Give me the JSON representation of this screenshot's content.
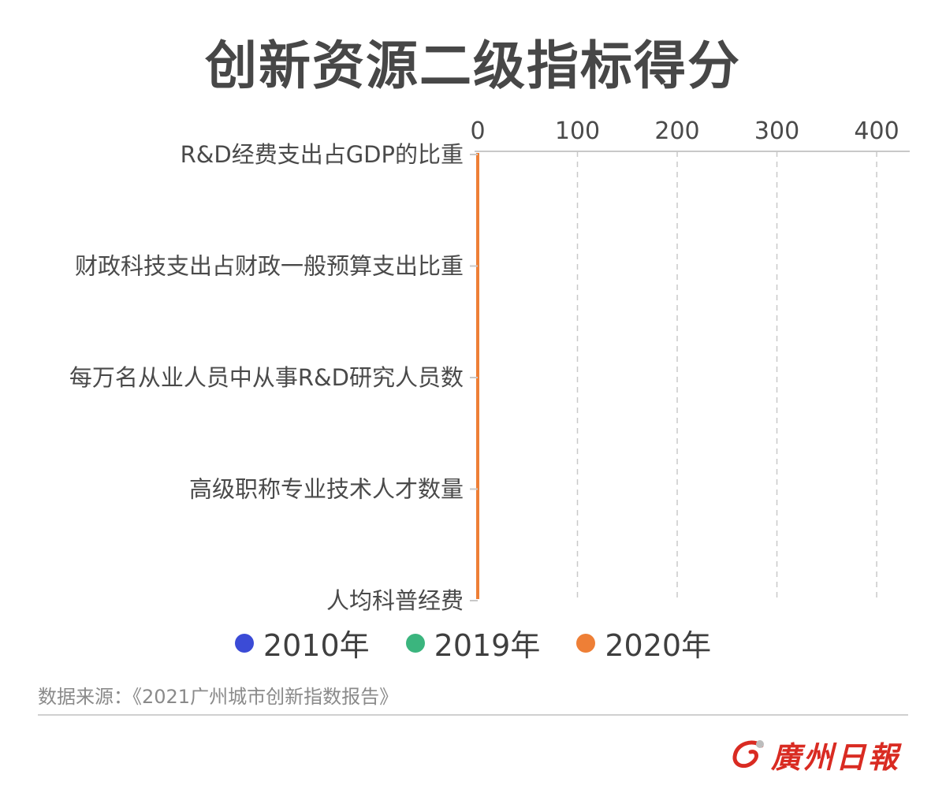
{
  "title": "创新资源二级指标得分",
  "chart_data": {
    "type": "bar",
    "orientation": "horizontal",
    "categories": [
      "R&D经费支出占GDP的比重",
      "财政科技支出占财政一般预算支出比重",
      "每万名从业人员中从事R&D研究人员数",
      "高级职称专业技术人才数量",
      "人均科普经费"
    ],
    "series": [
      {
        "name": "2010年",
        "color": "#3b4bd6",
        "values": [
          0,
          0,
          0,
          0,
          0
        ]
      },
      {
        "name": "2019年",
        "color": "#3bb57e",
        "values": [
          0,
          0,
          0,
          0,
          0
        ]
      },
      {
        "name": "2020年",
        "color": "#ee7f36",
        "values": [
          0,
          0,
          0,
          0,
          0
        ]
      }
    ],
    "xlim": [
      0,
      430
    ],
    "xticks": [
      "0",
      "100",
      "200",
      "300",
      "400"
    ],
    "xaxis_position": "top",
    "grid": "vertical-dashed",
    "legend": "bottom-center"
  },
  "source": "数据来源：《2021广州城市创新指数报告》",
  "logo": {
    "text": "廣州日報",
    "color": "#d92b22"
  }
}
